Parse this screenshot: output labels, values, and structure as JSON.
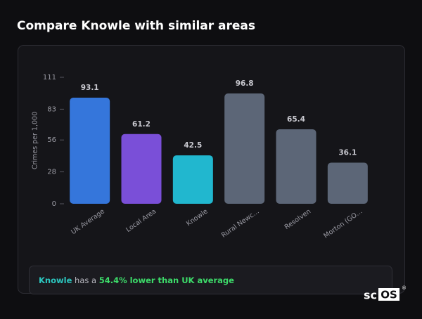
{
  "header": {
    "title": "Compare Knowle with similar areas"
  },
  "chart_data": {
    "type": "bar",
    "y_label": "Crimes per 1,000",
    "categories": [
      "UK Average",
      "Local Area",
      "Knowle",
      "Rural Newc…",
      "Resolven",
      "Morton (GO…"
    ],
    "values": [
      93.1,
      61.2,
      42.5,
      96.8,
      65.4,
      36.1
    ],
    "colors": [
      "#3576db",
      "#7a4fd8",
      "#21b7cf",
      "#5c6677",
      "#5c6677",
      "#5c6677"
    ],
    "ylim": [
      0,
      111
    ],
    "yticks": [
      0,
      28,
      56,
      83,
      111
    ],
    "grid": false
  },
  "footer": {
    "area": "Knowle",
    "middle": "has a",
    "highlight": "54.4% lower than UK average"
  },
  "logo": {
    "prefix": "sc",
    "boxed": "OS",
    "mark": "®"
  }
}
